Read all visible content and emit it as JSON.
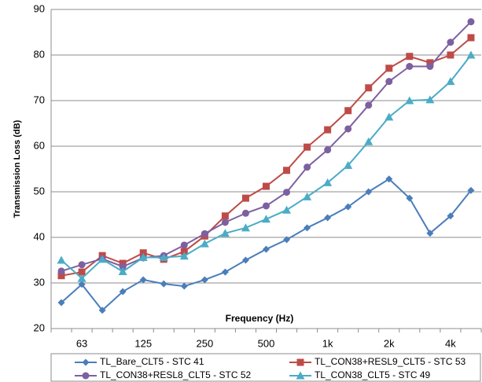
{
  "chart_data": {
    "type": "line",
    "x_label": "Frequency (Hz)",
    "y_label": "Transmission Loss (dB)",
    "categories": [
      null,
      "63",
      null,
      null,
      "125",
      null,
      null,
      "250",
      null,
      null,
      "500",
      null,
      null,
      "1k",
      null,
      null,
      "2k",
      null,
      null,
      "4k",
      null
    ],
    "ylim": [
      20,
      90
    ],
    "yticks": [
      20,
      30,
      40,
      50,
      60,
      70,
      80,
      90
    ],
    "grid": true,
    "legend": "bottom",
    "series": [
      {
        "name": "TL_Bare_CLT5 - STC 41",
        "color": "#4a7ebb",
        "marker": "diamond",
        "values": [
          25.7,
          29.7,
          24.0,
          28.1,
          30.7,
          29.8,
          29.3,
          30.7,
          32.4,
          35.0,
          37.4,
          39.5,
          42.1,
          44.3,
          46.7,
          50.0,
          52.8,
          48.6,
          40.9,
          44.7,
          50.3
        ]
      },
      {
        "name": "TL_CON38+RESL9_CLT5 - STC 53",
        "color": "#be4b48",
        "marker": "square",
        "values": [
          31.6,
          32.4,
          36.0,
          34.3,
          36.6,
          35.2,
          36.9,
          40.3,
          44.7,
          48.6,
          51.2,
          54.7,
          59.8,
          63.6,
          67.8,
          72.8,
          77.1,
          79.7,
          78.3,
          80.0,
          83.8
        ]
      },
      {
        "name": "TL_CON38+RESL8_CLT5 - STC 52",
        "color": "#7d60a0",
        "marker": "circle",
        "values": [
          32.6,
          34.0,
          35.3,
          33.6,
          35.5,
          36.0,
          38.3,
          40.8,
          43.3,
          45.3,
          46.9,
          49.9,
          55.4,
          59.2,
          63.8,
          69.0,
          74.2,
          77.5,
          77.5,
          82.8,
          87.3
        ]
      },
      {
        "name": "TL_CON38_CLT5 - STC 49",
        "color": "#4bacc6",
        "marker": "triangle",
        "values": [
          35.0,
          31.0,
          35.2,
          32.5,
          35.6,
          35.6,
          35.9,
          38.6,
          40.9,
          42.1,
          44.0,
          46.0,
          48.9,
          52.0,
          55.8,
          61.0,
          66.4,
          70.0,
          70.2,
          74.2,
          80.0
        ]
      }
    ]
  }
}
